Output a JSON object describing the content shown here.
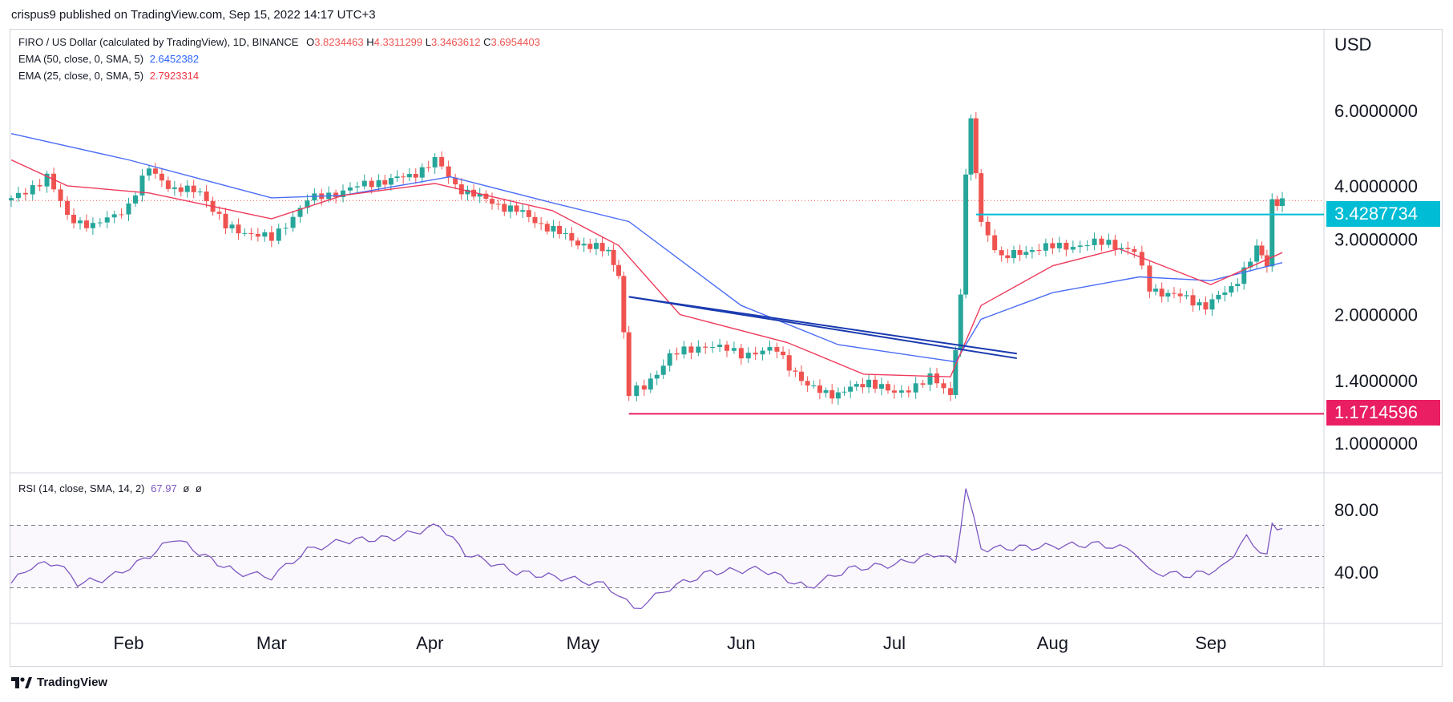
{
  "header": {
    "publisher_line": "crispus9 published on TradingView.com, Sep 15, 2022 14:17 UTC+3"
  },
  "legend": {
    "symbol_line": "FIRO / US Dollar (calculated by TradingView), 1D, BINANCE",
    "ohlc": {
      "o_label": "O",
      "o": "3.8234463",
      "h_label": "H",
      "h": "4.3311299",
      "l_label": "L",
      "l": "3.3463612",
      "c_label": "C",
      "c": "3.6954403"
    },
    "ema50": {
      "label": "EMA (50, close, 0, SMA, 5)",
      "value": "2.6452382",
      "color": "#2962ff"
    },
    "ema25": {
      "label": "EMA (25, close, 0, SMA, 5)",
      "value": "2.7923314",
      "color": "#f23645"
    }
  },
  "rsi_legend": {
    "label": "RSI (14, close, SMA, 14, 2)",
    "value": "67.97",
    "extra1": "ø",
    "extra2": "ø",
    "color": "#7e57c2"
  },
  "footer": {
    "brand": "TradingView"
  },
  "colors": {
    "up": "#26a69a",
    "down": "#ef5350",
    "resistance": "#00bcd4",
    "support": "#e91e63",
    "trendline": "#1a3ab0",
    "ema50": "#4a6cf7",
    "ema25": "#ef3b5c",
    "rsi": "#7e57c2"
  },
  "chart_data": {
    "type": "candlestick",
    "axis_currency": "USD",
    "price_scale": "log",
    "y_ticks": [
      "6.0000000",
      "4.0000000",
      "3.0000000",
      "2.0000000",
      "1.4000000",
      "1.0000000"
    ],
    "x_ticks": [
      "Feb",
      "Mar",
      "Apr",
      "May",
      "Jun",
      "Jul",
      "Aug",
      "Sep"
    ],
    "last_price": 3.6954403,
    "horizontal_levels": [
      {
        "label": "3.4287734",
        "value": 3.4287734,
        "color": "#00bcd4"
      },
      {
        "label": "1.1714596",
        "value": 1.1714596,
        "color": "#e91e63"
      }
    ],
    "close_path": [
      [
        "2022-01-09",
        3.7
      ],
      [
        "2022-01-16",
        4.2
      ],
      [
        "2022-01-20",
        3.4
      ],
      [
        "2022-01-25",
        3.2
      ],
      [
        "2022-02-01",
        3.6
      ],
      [
        "2022-02-05",
        4.4
      ],
      [
        "2022-02-10",
        3.9
      ],
      [
        "2022-02-15",
        3.9
      ],
      [
        "2022-02-20",
        3.2
      ],
      [
        "2022-02-25",
        3.1
      ],
      [
        "2022-03-01",
        3.0
      ],
      [
        "2022-03-08",
        3.7
      ],
      [
        "2022-03-15",
        3.9
      ],
      [
        "2022-03-22",
        4.1
      ],
      [
        "2022-03-28",
        4.2
      ],
      [
        "2022-04-02",
        4.6
      ],
      [
        "2022-04-06",
        4.0
      ],
      [
        "2022-04-12",
        3.7
      ],
      [
        "2022-04-18",
        3.5
      ],
      [
        "2022-04-24",
        3.2
      ],
      [
        "2022-04-30",
        2.95
      ],
      [
        "2022-05-06",
        2.8
      ],
      [
        "2022-05-08",
        2.5
      ],
      [
        "2022-05-10",
        1.3
      ],
      [
        "2022-05-13",
        1.35
      ],
      [
        "2022-05-18",
        1.6
      ],
      [
        "2022-05-25",
        1.7
      ],
      [
        "2022-06-01",
        1.62
      ],
      [
        "2022-06-08",
        1.65
      ],
      [
        "2022-06-14",
        1.35
      ],
      [
        "2022-06-20",
        1.3
      ],
      [
        "2022-06-26",
        1.4
      ],
      [
        "2022-07-01",
        1.3
      ],
      [
        "2022-07-08",
        1.42
      ],
      [
        "2022-07-12",
        1.3
      ],
      [
        "2022-07-14",
        2.2
      ],
      [
        "2022-07-15",
        4.3
      ],
      [
        "2022-07-16",
        5.6
      ],
      [
        "2022-07-18",
        3.3
      ],
      [
        "2022-07-22",
        2.7
      ],
      [
        "2022-07-28",
        2.85
      ],
      [
        "2022-08-05",
        2.9
      ],
      [
        "2022-08-12",
        2.95
      ],
      [
        "2022-08-17",
        2.8
      ],
      [
        "2022-08-20",
        2.3
      ],
      [
        "2022-08-26",
        2.2
      ],
      [
        "2022-08-31",
        2.1
      ],
      [
        "2022-09-05",
        2.3
      ],
      [
        "2022-09-10",
        2.85
      ],
      [
        "2022-09-12",
        2.6
      ],
      [
        "2022-09-13",
        3.7
      ],
      [
        "2022-09-15",
        3.6954403
      ]
    ],
    "ema50_path": [
      [
        "2022-01-09",
        5.3
      ],
      [
        "2022-02-01",
        4.6
      ],
      [
        "2022-03-01",
        3.75
      ],
      [
        "2022-03-15",
        3.8
      ],
      [
        "2022-04-05",
        4.2
      ],
      [
        "2022-04-25",
        3.65
      ],
      [
        "2022-05-10",
        3.3
      ],
      [
        "2022-06-01",
        2.1
      ],
      [
        "2022-06-20",
        1.7
      ],
      [
        "2022-07-13",
        1.55
      ],
      [
        "2022-07-18",
        1.95
      ],
      [
        "2022-08-01",
        2.25
      ],
      [
        "2022-08-18",
        2.45
      ],
      [
        "2022-09-01",
        2.4
      ],
      [
        "2022-09-15",
        2.6452382
      ]
    ],
    "ema25_path": [
      [
        "2022-01-09",
        4.6
      ],
      [
        "2022-01-20",
        4.0
      ],
      [
        "2022-02-05",
        3.85
      ],
      [
        "2022-03-01",
        3.35
      ],
      [
        "2022-03-15",
        3.8
      ],
      [
        "2022-04-02",
        4.05
      ],
      [
        "2022-04-25",
        3.5
      ],
      [
        "2022-05-08",
        2.9
      ],
      [
        "2022-05-20",
        2.0
      ],
      [
        "2022-06-10",
        1.72
      ],
      [
        "2022-06-25",
        1.45
      ],
      [
        "2022-07-12",
        1.43
      ],
      [
        "2022-07-18",
        2.1
      ],
      [
        "2022-08-01",
        2.6
      ],
      [
        "2022-08-14",
        2.85
      ],
      [
        "2022-09-01",
        2.35
      ],
      [
        "2022-09-15",
        2.7923314
      ]
    ],
    "trendlines": [
      {
        "from": [
          "2022-05-10",
          2.2
        ],
        "to": [
          "2022-07-25",
          1.58
        ]
      },
      {
        "from": [
          "2022-05-10",
          2.2
        ],
        "to": [
          "2022-07-25",
          1.62
        ]
      }
    ],
    "rsi": {
      "y_ticks": [
        "80.00",
        "40.00"
      ],
      "bands": [
        70,
        50,
        30
      ],
      "values": [
        [
          "2022-01-09",
          33
        ],
        [
          "2022-01-13",
          44
        ],
        [
          "2022-01-18",
          46
        ],
        [
          "2022-01-22",
          33
        ],
        [
          "2022-01-28",
          36
        ],
        [
          "2022-02-04",
          48
        ],
        [
          "2022-02-10",
          62
        ],
        [
          "2022-02-16",
          50
        ],
        [
          "2022-02-22",
          40
        ],
        [
          "2022-03-01",
          37
        ],
        [
          "2022-03-08",
          54
        ],
        [
          "2022-03-15",
          60
        ],
        [
          "2022-03-25",
          62
        ],
        [
          "2022-04-03",
          70
        ],
        [
          "2022-04-08",
          52
        ],
        [
          "2022-04-18",
          40
        ],
        [
          "2022-04-28",
          36
        ],
        [
          "2022-05-05",
          32
        ],
        [
          "2022-05-08",
          26
        ],
        [
          "2022-05-11",
          16
        ],
        [
          "2022-05-18",
          30
        ],
        [
          "2022-05-26",
          40
        ],
        [
          "2022-06-05",
          42
        ],
        [
          "2022-06-14",
          30
        ],
        [
          "2022-06-22",
          42
        ],
        [
          "2022-07-01",
          45
        ],
        [
          "2022-07-10",
          52
        ],
        [
          "2022-07-13",
          45
        ],
        [
          "2022-07-15",
          94
        ],
        [
          "2022-07-18",
          55
        ],
        [
          "2022-07-28",
          56
        ],
        [
          "2022-08-10",
          58
        ],
        [
          "2022-08-17",
          54
        ],
        [
          "2022-08-20",
          40
        ],
        [
          "2022-08-28",
          38
        ],
        [
          "2022-09-03",
          42
        ],
        [
          "2022-09-08",
          62
        ],
        [
          "2022-09-12",
          50
        ],
        [
          "2022-09-13",
          70
        ],
        [
          "2022-09-15",
          67.97
        ]
      ]
    }
  }
}
